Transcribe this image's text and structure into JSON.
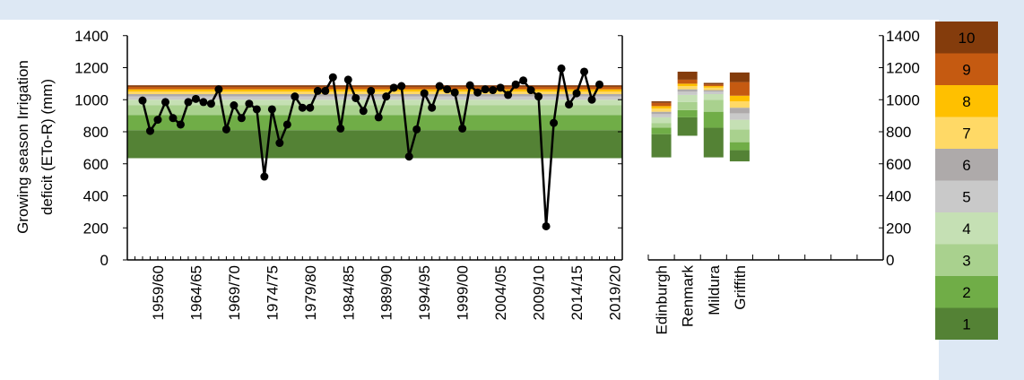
{
  "chart_data": [
    {
      "type": "line",
      "ylabel_line1": "Growing season Irrigation",
      "ylabel_line2": "deficit (ETo-R) (mm)",
      "ylim": [
        0,
        1400
      ],
      "yticks": [
        0,
        200,
        400,
        600,
        800,
        1000,
        1200,
        1400
      ],
      "xlim": [
        1955,
        2020
      ],
      "xticks": [
        "1959/60",
        "1964/65",
        "1969/70",
        "1974/75",
        "1979/80",
        "1984/85",
        "1989/90",
        "1994/95",
        "1999/00",
        "2004/05",
        "2009/10",
        "2014/15",
        "2019/20"
      ],
      "xtick_years": [
        1959,
        1964,
        1969,
        1974,
        1979,
        1984,
        1989,
        1994,
        1999,
        2004,
        2009,
        2014,
        2019
      ],
      "background_band_bounds": [
        635,
        810,
        905,
        965,
        1000,
        1020,
        1035,
        1050,
        1065,
        1080,
        1090
      ],
      "series": [
        {
          "x": [
            1957,
            1958,
            1959,
            1960,
            1961,
            1962,
            1963,
            1964,
            1965,
            1966,
            1967,
            1968,
            1969,
            1970,
            1971,
            1972,
            1973,
            1974,
            1975,
            1976,
            1977,
            1978,
            1979,
            1980,
            1981,
            1982,
            1983,
            1984,
            1985,
            1986,
            1987,
            1988,
            1989,
            1990,
            1991,
            1992,
            1993,
            1994,
            1995,
            1996,
            1997,
            1998,
            1999,
            2000,
            2001,
            2002,
            2003,
            2004,
            2005,
            2006,
            2007,
            2008,
            2009,
            2010,
            2011,
            2012,
            2013,
            2014,
            2015,
            2016,
            2017
          ],
          "y": [
            995,
            805,
            875,
            985,
            885,
            845,
            985,
            1005,
            985,
            975,
            1065,
            815,
            965,
            885,
            975,
            940,
            520,
            940,
            730,
            845,
            1020,
            950,
            950,
            1055,
            1055,
            1140,
            820,
            1125,
            1010,
            930,
            1055,
            890,
            1020,
            1075,
            1085,
            645,
            815,
            1040,
            950,
            1085,
            1065,
            1045,
            820,
            1090,
            1045,
            1065,
            1060,
            1075,
            1030,
            1095,
            1120,
            1060,
            1020,
            210,
            855,
            1195,
            970,
            1040,
            1175,
            1000,
            1095
          ]
        }
      ]
    },
    {
      "type": "bar",
      "stacked": true,
      "categories": [
        "Edinburgh",
        "Renmark",
        "Mildura",
        "Griffith"
      ],
      "series": [
        {
          "name": "1",
          "base": [
            640,
            775,
            640,
            615
          ],
          "values": [
            145,
            115,
            185,
            70
          ]
        },
        {
          "name": "2",
          "values": [
            40,
            45,
            100,
            50
          ]
        },
        {
          "name": "3",
          "values": [
            30,
            50,
            75,
            80
          ]
        },
        {
          "name": "4",
          "values": [
            35,
            45,
            35,
            60
          ]
        },
        {
          "name": "5",
          "values": [
            20,
            20,
            15,
            40
          ]
        },
        {
          "name": "6",
          "values": [
            15,
            15,
            10,
            35
          ]
        },
        {
          "name": "7",
          "values": [
            20,
            20,
            15,
            40
          ]
        },
        {
          "name": "8",
          "values": [
            15,
            15,
            10,
            35
          ]
        },
        {
          "name": "9",
          "values": [
            20,
            25,
            10,
            85
          ]
        },
        {
          "name": "10",
          "values": [
            10,
            50,
            10,
            60
          ]
        }
      ]
    }
  ],
  "right_axis": {
    "ticks": [
      0,
      200,
      400,
      600,
      800,
      1000,
      1200,
      1400
    ]
  },
  "legend": {
    "placement": "right",
    "items": [
      {
        "label": "10",
        "color": "#843c0c"
      },
      {
        "label": "9",
        "color": "#c55a11"
      },
      {
        "label": "8",
        "color": "#ffc000"
      },
      {
        "label": "7",
        "color": "#ffd966"
      },
      {
        "label": "6",
        "color": "#aeaaaa"
      },
      {
        "label": "5",
        "color": "#c9c9c9"
      },
      {
        "label": "4",
        "color": "#c5e0b4"
      },
      {
        "label": "3",
        "color": "#a9d18e"
      },
      {
        "label": "2",
        "color": "#70ad47"
      },
      {
        "label": "1",
        "color": "#548235"
      }
    ]
  },
  "colors": {
    "class_1": "#548235",
    "class_2": "#70ad47",
    "class_3": "#a9d18e",
    "class_4": "#c5e0b4",
    "class_5": "#c9c9c9",
    "class_6": "#aeaaaa",
    "class_7": "#ffd966",
    "class_8": "#ffc000",
    "class_9": "#c55a11",
    "class_10": "#843c0c",
    "line": "#000000",
    "panel": "#dde8f4"
  }
}
